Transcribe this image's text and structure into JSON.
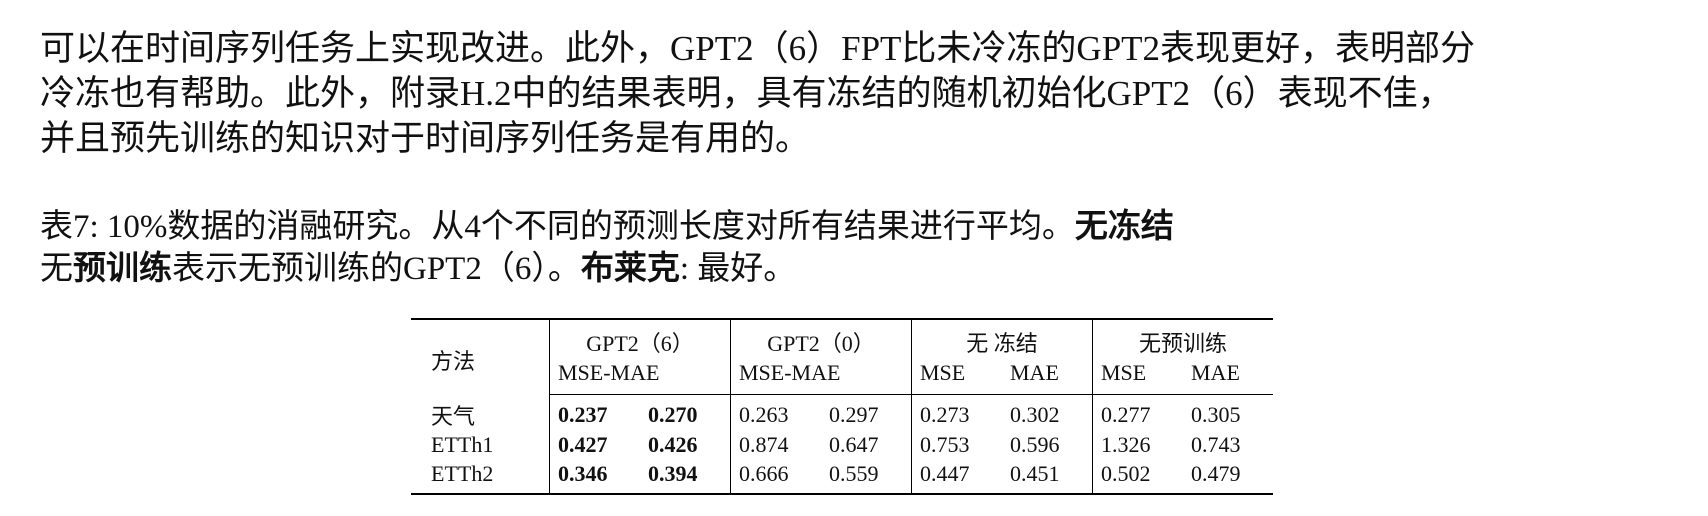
{
  "paragraph": {
    "lines": [
      "可以在时间序列任务上实现改进。此外，GPT2（6）FPT比未冷冻的GPT2表现更好，表明部分",
      "冷冻也有帮助。此外，附录H.2中的结果表明，具有冻结的随机初始化GPT2（6）表现不佳，",
      "并且预先训练的知识对于时间序列任务是有用的。"
    ]
  },
  "caption": {
    "lines": [
      [
        {
          "text": "表7: 10%数据的消融研究。从4个不同的预测长度对所有结果进行平均。",
          "bold": false
        },
        {
          "text": "无冻结",
          "bold": true
        }
      ],
      [
        {
          "text": "无",
          "bold": false
        },
        {
          "text": "预训练",
          "bold": true
        },
        {
          "text": "表示无预训练的GPT2（6）。",
          "bold": false
        },
        {
          "text": "布莱克",
          "bold": true
        },
        {
          "text": ": 最好。",
          "bold": false
        }
      ]
    ]
  },
  "table": {
    "header": {
      "method": "方法",
      "groups": [
        {
          "name": "GPT2（6）",
          "sub": [
            "MSE-MAE"
          ]
        },
        {
          "name": "GPT2（0）",
          "sub": [
            "MSE-MAE"
          ]
        },
        {
          "name": "无 冻结",
          "sub": [
            "MSE",
            "MAE"
          ]
        },
        {
          "name": "无预训练",
          "sub": [
            "MSE",
            "MAE"
          ]
        }
      ]
    },
    "bold_columns": [
      0,
      1
    ],
    "rows": [
      {
        "label": "天气",
        "cells": [
          "0.237",
          "0.270",
          "0.263",
          "0.297",
          "0.273",
          "0.302",
          "0.277",
          "0.305"
        ]
      },
      {
        "label": "ETTh1",
        "cells": [
          "0.427",
          "0.426",
          "0.874",
          "0.647",
          "0.753",
          "0.596",
          "1.326",
          "0.743"
        ]
      },
      {
        "label": "ETTh2",
        "cells": [
          "0.346",
          "0.394",
          "0.666",
          "0.559",
          "0.447",
          "0.451",
          "0.502",
          "0.479"
        ]
      }
    ]
  }
}
